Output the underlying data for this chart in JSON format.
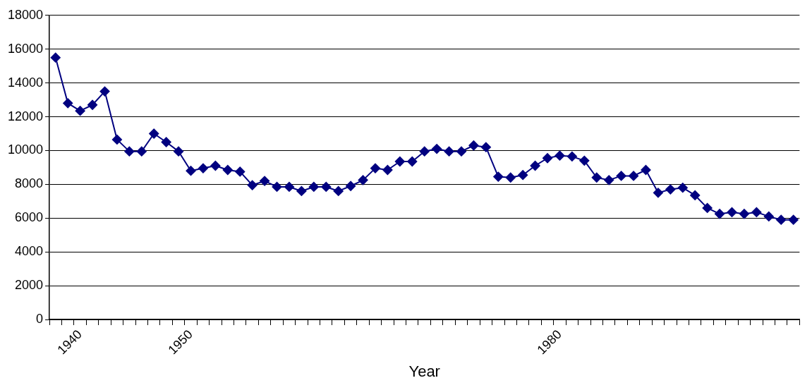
{
  "chart_data": {
    "type": "line",
    "xlabel": "Year",
    "categories": [
      null,
      null,
      "1940",
      null,
      null,
      null,
      null,
      null,
      null,
      null,
      null,
      "1950",
      null,
      null,
      null,
      null,
      null,
      null,
      null,
      null,
      null,
      null,
      null,
      null,
      null,
      null,
      null,
      null,
      null,
      null,
      null,
      null,
      null,
      null,
      null,
      null,
      null,
      null,
      null,
      null,
      null,
      "1980",
      null,
      null,
      null,
      null,
      null,
      null,
      null,
      null,
      null,
      null,
      null,
      null,
      null,
      null,
      null,
      null,
      null,
      null,
      null
    ],
    "series": [
      {
        "color": "#000080",
        "values": [
          15500,
          12800,
          12350,
          12700,
          13500,
          10650,
          9950,
          9950,
          11000,
          10500,
          9950,
          8800,
          8950,
          9100,
          8850,
          8750,
          7950,
          8200,
          7850,
          7850,
          7600,
          7850,
          7850,
          7600,
          7900,
          8250,
          8950,
          8850,
          9350,
          9350,
          9950,
          10100,
          9950,
          9950,
          10300,
          10200,
          8450,
          8400,
          8550,
          9100,
          9550,
          9700,
          9650,
          9400,
          8400,
          8250,
          8500,
          8500,
          8850,
          7500,
          7700,
          7800,
          7350,
          6600,
          6250,
          6350,
          6250,
          6350,
          6100,
          5900,
          5900
        ]
      }
    ],
    "ylim": [
      0,
      18000
    ],
    "yticks": [
      0,
      2000,
      4000,
      6000,
      8000,
      10000,
      12000,
      14000,
      16000,
      18000
    ],
    "grid": "y",
    "legend": false,
    "marker": "diamond",
    "line_style": "solid"
  }
}
